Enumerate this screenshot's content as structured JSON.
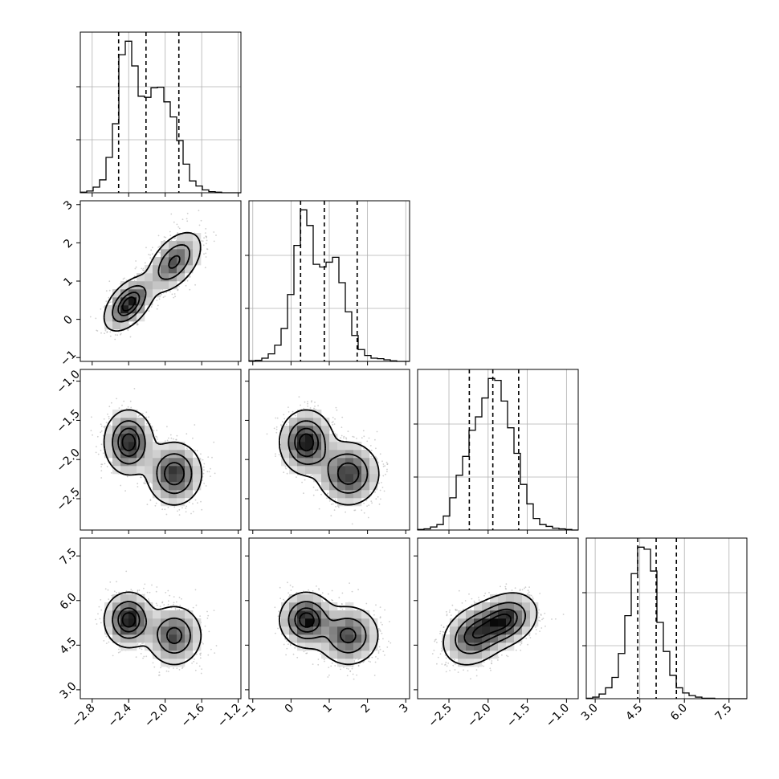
{
  "chart_data": {
    "type": "corner",
    "parameters": [
      {
        "range": [
          -2.93,
          -1.17
        ],
        "ticks": [
          -2.8,
          -2.4,
          -2.0,
          -1.6,
          -1.2
        ],
        "tick_labels": [
          "−2.8",
          "−2.4",
          "−2.0",
          "−1.6",
          "−1.2"
        ],
        "quantiles": [
          -2.51,
          -2.21,
          -1.85
        ],
        "histogram": {
          "start": -2.93,
          "width": 0.0704,
          "counts": [
            1,
            3,
            10,
            23,
            63,
            123,
            246,
            270,
            226,
            172,
            170,
            187,
            188,
            162,
            135,
            93,
            51,
            21,
            12,
            5,
            2,
            1,
            0,
            0,
            0
          ]
        }
      },
      {
        "range": [
          -1.1,
          3.1
        ],
        "ticks": [
          -1,
          0,
          1,
          2,
          3
        ],
        "tick_labels": [
          "−1",
          "0",
          "1",
          "2",
          "3"
        ],
        "quantiles": [
          0.25,
          0.87,
          1.73
        ],
        "histogram": {
          "start": -1.1,
          "width": 0.168,
          "counts": [
            1,
            2,
            6,
            14,
            30,
            61,
            124,
            215,
            281,
            252,
            180,
            175,
            184,
            193,
            146,
            92,
            48,
            22,
            11,
            6,
            5,
            3,
            1,
            0,
            0
          ]
        }
      },
      {
        "range": [
          -2.9,
          -0.85
        ],
        "ticks": [
          -1.0,
          -1.5,
          -2.0,
          -2.5
        ],
        "tick_labels": [
          "−1.0",
          "−1.5",
          "−2.0",
          "−2.5"
        ],
        "bottom_ticks": [
          -2.5,
          -2.0,
          -1.5,
          -1.0
        ],
        "bottom_tick_labels": [
          "−2.5",
          "−2.0",
          "−1.5",
          "−1.0"
        ],
        "quantiles": [
          -2.24,
          -1.94,
          -1.61
        ],
        "histogram": {
          "start": -2.9,
          "width": 0.082,
          "counts": [
            1,
            2,
            5,
            9,
            23,
            53,
            90,
            121,
            164,
            186,
            217,
            249,
            246,
            212,
            168,
            126,
            75,
            43,
            19,
            9,
            6,
            3,
            2,
            1,
            0
          ]
        }
      },
      {
        "range": [
          2.7,
          8.1
        ],
        "ticks": [
          3.0,
          4.5,
          6.0,
          7.5
        ],
        "tick_labels": [
          "3.0",
          "4.5",
          "6.0",
          "7.5"
        ],
        "quantiles": [
          4.43,
          5.05,
          5.73
        ],
        "histogram": {
          "start": 2.7,
          "width": 0.216,
          "counts": [
            1,
            3,
            9,
            21,
            41,
            87,
            160,
            241,
            292,
            288,
            246,
            147,
            91,
            45,
            21,
            11,
            6,
            3,
            1,
            1,
            0,
            0,
            0,
            0,
            0
          ]
        }
      }
    ],
    "components": [
      {
        "weight": 0.5,
        "mean": [
          -2.4,
          0.4,
          -1.78,
          5.35
        ],
        "sd": [
          0.13,
          0.34,
          0.2,
          0.45
        ]
      },
      {
        "weight": 0.5,
        "mean": [
          -1.9,
          1.5,
          -2.18,
          4.82
        ],
        "sd": [
          0.15,
          0.4,
          0.2,
          0.5
        ]
      }
    ],
    "correlations": {
      "1-0": 0.5,
      "2-0": 0.0,
      "2-1": 0.0,
      "3-0": 0.0,
      "3-1": 0.0,
      "3-2": 0.25
    },
    "contour_levels": [
      0.118,
      0.393,
      0.675,
      0.865
    ]
  }
}
